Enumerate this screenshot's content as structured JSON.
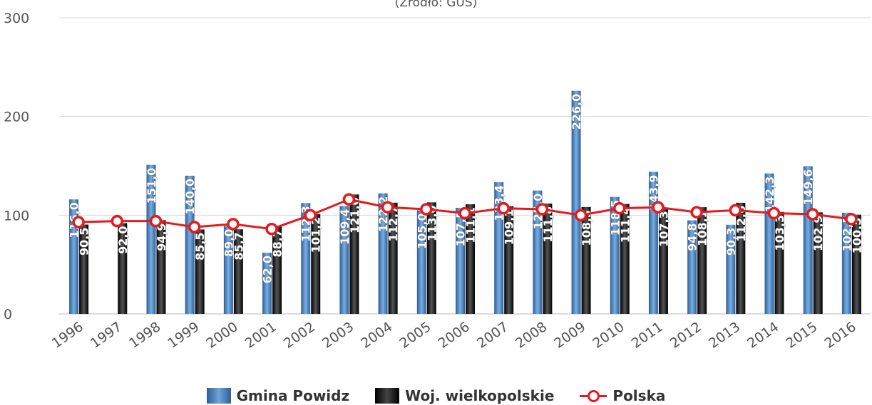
{
  "chart_data": {
    "type": "bar",
    "subtitle": "(Źródło: GUS)",
    "categories": [
      "1996",
      "1997",
      "1998",
      "1999",
      "2000",
      "2001",
      "2002",
      "2003",
      "2004",
      "2005",
      "2006",
      "2007",
      "2008",
      "2009",
      "2010",
      "2011",
      "2012",
      "2013",
      "2014",
      "2015",
      "2016"
    ],
    "ylim": [
      0,
      300
    ],
    "yticks": [
      0,
      100,
      200,
      300
    ],
    "grid": true,
    "legend_position": "bottom",
    "series": [
      {
        "name": "Gmina Powidz",
        "kind": "bar",
        "color": "#4a7fbf",
        "values": [
          116.0,
          null,
          151.0,
          140.0,
          89.0,
          62.0,
          112.3,
          109.4,
          122.2,
          105.0,
          107.5,
          133.4,
          125.0,
          226.0,
          118.5,
          143.9,
          94.8,
          90.3,
          142.3,
          149.6,
          102.5
        ],
        "labels": [
          "116,0",
          "",
          "151,0",
          "140,0",
          "89,0",
          "62,0",
          "112,3",
          "109,4",
          "122,2",
          "105,0",
          "107,5",
          "133,4",
          "125,0",
          "226,0",
          "118,5",
          "143,9",
          "94,8",
          "90,3",
          "142,3",
          "149,6",
          "102,5"
        ]
      },
      {
        "name": "Woj. wielkopolskie",
        "kind": "bar",
        "color": "#111111",
        "values": [
          90.5,
          92.0,
          94.9,
          85.5,
          85.7,
          88.7,
          101.2,
          121.0,
          112.7,
          113.0,
          111.1,
          109.1,
          111.8,
          108.3,
          111.4,
          107.3,
          108.1,
          112.6,
          103.3,
          102.9,
          100.5
        ],
        "labels": [
          "90,5",
          "92,0",
          "94,9",
          "85,5",
          "85,7",
          "88,7",
          "101,2",
          "121,0",
          "112,7",
          "113,0",
          "111,1",
          "109,1",
          "111,8",
          "108,3",
          "111,4",
          "107,3",
          "108,1",
          "112,6",
          "103,3",
          "102,9",
          "100,5"
        ]
      },
      {
        "name": "Polska",
        "kind": "line",
        "color": "#e41a1c",
        "values": [
          93,
          94,
          94,
          88,
          91,
          86,
          100,
          116,
          108,
          106,
          102,
          107,
          106,
          100,
          107,
          108,
          103,
          105,
          102,
          101,
          96
        ]
      }
    ]
  }
}
